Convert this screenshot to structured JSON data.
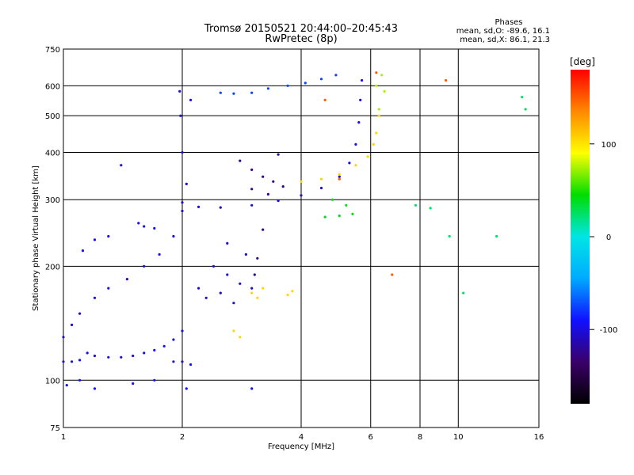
{
  "chart_data": {
    "type": "scatter",
    "title": "Tromsø 20150521 20:44:00–20:45:43",
    "subtitle": "RwPretec (8p)",
    "xlabel": "Frequency [MHz]",
    "ylabel": "Stationary phase Virtual Height [km]",
    "x_scale": "log",
    "y_scale": "log",
    "xlim": [
      1,
      16
    ],
    "ylim": [
      75,
      750
    ],
    "x_ticks": [
      "1",
      "2",
      "4",
      "6",
      "8",
      "10",
      "16"
    ],
    "y_ticks": [
      "75",
      "100",
      "200",
      "300",
      "400",
      "500",
      "600",
      "750"
    ],
    "grid": true,
    "stats": {
      "heading": "Phases",
      "line_o": "mean, sd,O: -89.6, 16.1",
      "line_x": "mean, sd,X: 86.1, 21.3"
    },
    "colorbar": {
      "label": "[deg]",
      "range": [
        -180,
        180
      ],
      "ticks": [
        "100",
        "0",
        "-100"
      ],
      "tick_values": [
        100,
        0,
        -100
      ],
      "colormap": [
        "#000000",
        "#3a0068",
        "#1010ff",
        "#00aaff",
        "#00e5e5",
        "#00dd00",
        "#ffff00",
        "#ff8800",
        "#ff0000"
      ]
    },
    "series": [
      {
        "color_phase": -95,
        "points": [
          [
            1.0,
            112
          ],
          [
            1.05,
            112
          ],
          [
            1.1,
            113
          ],
          [
            1.15,
            118
          ],
          [
            1.2,
            116
          ],
          [
            1.3,
            115
          ],
          [
            1.4,
            115
          ],
          [
            1.5,
            116
          ],
          [
            1.6,
            118
          ],
          [
            1.7,
            120
          ],
          [
            1.8,
            123
          ],
          [
            1.9,
            128
          ],
          [
            2.0,
            135
          ]
        ]
      },
      {
        "color_phase": -100,
        "points": [
          [
            1.0,
            130
          ],
          [
            1.05,
            140
          ],
          [
            1.1,
            150
          ],
          [
            1.2,
            165
          ],
          [
            1.3,
            175
          ],
          [
            1.45,
            185
          ],
          [
            1.6,
            200
          ],
          [
            1.75,
            215
          ],
          [
            1.9,
            240
          ],
          [
            2.0,
            280
          ],
          [
            2.05,
            330
          ],
          [
            2.0,
            400
          ],
          [
            1.98,
            500
          ],
          [
            1.97,
            580
          ]
        ]
      },
      {
        "color_phase": -100,
        "points": [
          [
            2.0,
            295
          ],
          [
            2.2,
            287
          ],
          [
            2.5,
            286
          ],
          [
            3.0,
            290
          ],
          [
            3.5,
            298
          ],
          [
            4.0,
            308
          ],
          [
            4.5,
            322
          ],
          [
            5.0,
            345
          ],
          [
            5.3,
            375
          ],
          [
            5.5,
            420
          ],
          [
            5.6,
            480
          ],
          [
            5.65,
            550
          ],
          [
            5.7,
            620
          ]
        ]
      },
      {
        "color_phase": -75,
        "points": [
          [
            2.5,
            575
          ],
          [
            2.7,
            572
          ],
          [
            3.0,
            575
          ],
          [
            3.3,
            590
          ],
          [
            3.7,
            600
          ],
          [
            4.1,
            610
          ],
          [
            4.5,
            625
          ],
          [
            4.9,
            640
          ]
        ]
      },
      {
        "color_phase": -125,
        "points": [
          [
            2.8,
            380
          ],
          [
            3.0,
            360
          ],
          [
            3.2,
            345
          ],
          [
            3.4,
            335
          ],
          [
            3.6,
            325
          ],
          [
            3.0,
            320
          ],
          [
            3.3,
            310
          ],
          [
            3.5,
            395
          ],
          [
            3.2,
            250
          ],
          [
            3.1,
            210
          ],
          [
            3.05,
            190
          ]
        ]
      },
      {
        "color_phase": -105,
        "points": [
          [
            2.4,
            200
          ],
          [
            2.6,
            190
          ],
          [
            2.8,
            180
          ],
          [
            3.0,
            175
          ],
          [
            2.5,
            170
          ],
          [
            2.7,
            160
          ],
          [
            2.9,
            215
          ],
          [
            2.6,
            230
          ],
          [
            2.3,
            165
          ],
          [
            2.2,
            175
          ]
        ]
      },
      {
        "color_phase": 105,
        "points": [
          [
            3.0,
            170
          ],
          [
            3.1,
            165
          ],
          [
            3.2,
            175
          ],
          [
            3.7,
            168
          ],
          [
            3.8,
            172
          ],
          [
            2.7,
            135
          ],
          [
            2.8,
            130
          ],
          [
            4.0,
            335
          ],
          [
            4.5,
            340
          ],
          [
            5.0,
            350
          ],
          [
            5.5,
            370
          ],
          [
            5.9,
            390
          ],
          [
            6.1,
            420
          ],
          [
            6.2,
            450
          ],
          [
            6.3,
            500
          ]
        ]
      },
      {
        "color_phase": 75,
        "points": [
          [
            6.2,
            600
          ],
          [
            6.4,
            640
          ],
          [
            6.5,
            580
          ],
          [
            6.3,
            520
          ]
        ]
      },
      {
        "color_phase": -95,
        "points": [
          [
            1.55,
            260
          ],
          [
            1.6,
            255
          ],
          [
            1.7,
            252
          ],
          [
            1.3,
            240
          ],
          [
            1.2,
            235
          ],
          [
            1.12,
            220
          ],
          [
            1.4,
            370
          ],
          [
            2.1,
            550
          ]
        ]
      },
      {
        "color_phase": -90,
        "points": [
          [
            1.02,
            97
          ],
          [
            1.1,
            100
          ],
          [
            1.2,
            95
          ],
          [
            1.5,
            98
          ],
          [
            1.7,
            100
          ],
          [
            1.9,
            112
          ],
          [
            2.0,
            112
          ],
          [
            2.1,
            110
          ],
          [
            2.05,
            95
          ],
          [
            3.0,
            95
          ]
        ]
      },
      {
        "color_phase": 40,
        "points": [
          [
            4.6,
            270
          ],
          [
            5.0,
            272
          ],
          [
            5.4,
            275
          ],
          [
            5.2,
            290
          ],
          [
            4.8,
            300
          ]
        ]
      },
      {
        "color_phase": 150,
        "points": [
          [
            4.6,
            550
          ],
          [
            5.0,
            340
          ],
          [
            6.2,
            650
          ],
          [
            6.8,
            190
          ],
          [
            9.3,
            620
          ]
        ]
      },
      {
        "color_phase": 25,
        "points": [
          [
            7.8,
            290
          ],
          [
            8.5,
            285
          ],
          [
            9.5,
            240
          ],
          [
            12.5,
            240
          ],
          [
            14.5,
            560
          ],
          [
            14.8,
            520
          ],
          [
            10.3,
            170
          ]
        ]
      }
    ]
  }
}
